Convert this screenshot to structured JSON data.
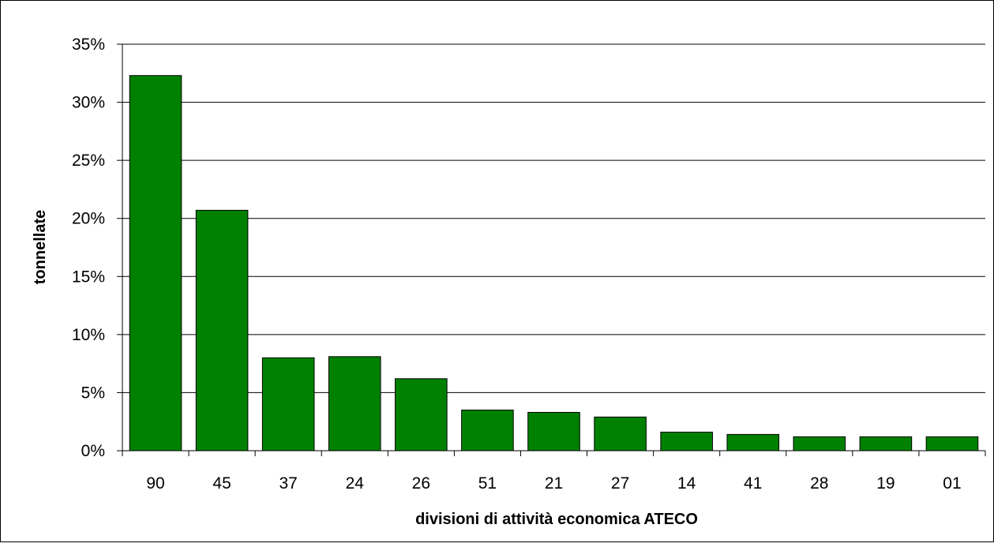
{
  "chart_data": {
    "type": "bar",
    "title": "",
    "xlabel": "divisioni di attività economica ATECO",
    "ylabel": "tonnellate",
    "categories": [
      "90",
      "45",
      "37",
      "24",
      "26",
      "51",
      "21",
      "27",
      "14",
      "41",
      "28",
      "19",
      "01"
    ],
    "values": [
      32.3,
      20.7,
      8.0,
      8.1,
      6.2,
      3.5,
      3.3,
      2.9,
      1.6,
      1.4,
      1.2,
      1.2,
      1.2
    ],
    "value_unit": "%",
    "ylim": [
      0,
      35
    ],
    "yticks": [
      0,
      5,
      10,
      15,
      20,
      25,
      30,
      35
    ],
    "ytick_labels": [
      "0%",
      "5%",
      "10%",
      "15%",
      "20%",
      "25%",
      "30%",
      "35%"
    ],
    "grid": true,
    "legend": "none",
    "colors": {
      "bar_fill": "#008000",
      "bar_stroke": "#000000",
      "grid": "#000000"
    }
  }
}
